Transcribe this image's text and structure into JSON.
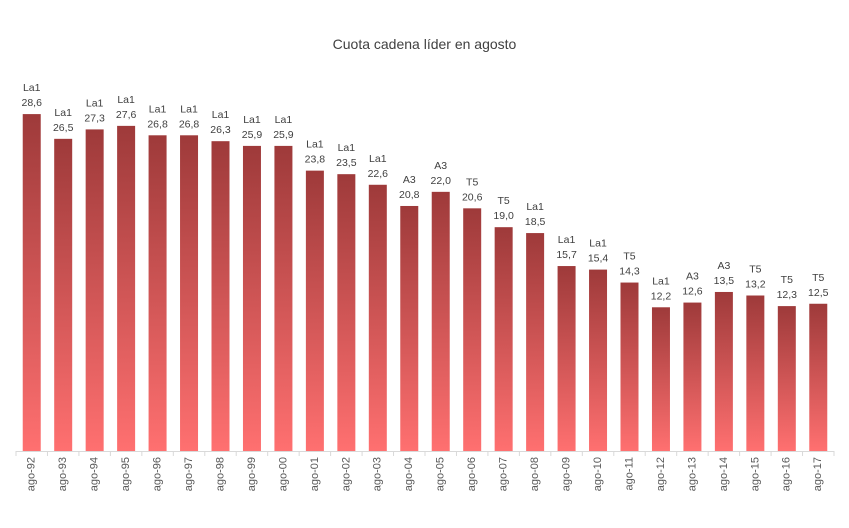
{
  "chart_data": {
    "type": "bar",
    "title": "Cuota cadena líder en agosto",
    "xlabel": "",
    "ylabel": "",
    "ylim": [
      0,
      30
    ],
    "grid": false,
    "legend": "none",
    "colors": {
      "bar_top": "#9e3a3a",
      "bar_bottom": "#ff7070",
      "axis": "#d9d9d9",
      "text": "#404040"
    },
    "categories": [
      "ago-92",
      "ago-93",
      "ago-94",
      "ago-95",
      "ago-96",
      "ago-97",
      "ago-98",
      "ago-99",
      "ago-00",
      "ago-01",
      "ago-02",
      "ago-03",
      "ago-04",
      "ago-05",
      "ago-06",
      "ago-07",
      "ago-08",
      "ago-09",
      "ago-10",
      "ago-11",
      "ago-12",
      "ago-13",
      "ago-14",
      "ago-15",
      "ago-16",
      "ago-17"
    ],
    "values": [
      28.6,
      26.5,
      27.3,
      27.6,
      26.8,
      26.8,
      26.3,
      25.9,
      25.9,
      23.8,
      23.5,
      22.6,
      20.8,
      22.0,
      20.6,
      19.0,
      18.5,
      15.7,
      15.4,
      14.3,
      12.2,
      12.6,
      13.5,
      13.2,
      12.3,
      12.5
    ],
    "value_labels": [
      "28,6",
      "26,5",
      "27,3",
      "27,6",
      "26,8",
      "26,8",
      "26,3",
      "25,9",
      "25,9",
      "23,8",
      "23,5",
      "22,6",
      "20,8",
      "22,0",
      "20,6",
      "19,0",
      "18,5",
      "15,7",
      "15,4",
      "14,3",
      "12,2",
      "12,6",
      "13,5",
      "13,2",
      "12,3",
      "12,5"
    ],
    "leaders": [
      "La1",
      "La1",
      "La1",
      "La1",
      "La1",
      "La1",
      "La1",
      "La1",
      "La1",
      "La1",
      "La1",
      "La1",
      "A3",
      "A3",
      "T5",
      "T5",
      "La1",
      "La1",
      "La1",
      "T5",
      "La1",
      "A3",
      "A3",
      "T5",
      "T5",
      "T5"
    ]
  }
}
